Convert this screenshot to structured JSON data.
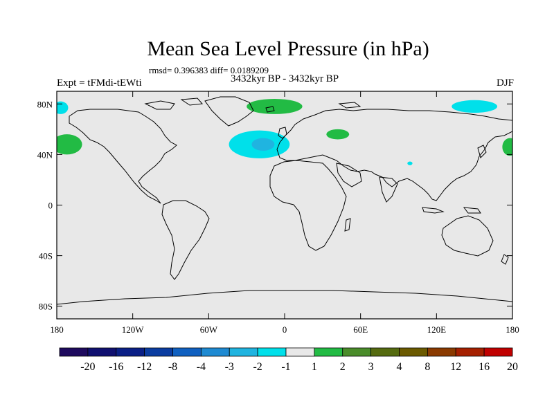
{
  "chart_data": {
    "type": "heatmap",
    "title": "Mean Sea Level Pressure (in hPa)",
    "subtitle": "rmsd= 0.396383 diff= 0.0189209",
    "period_label": "3432kyr BP - 3432kyr BP",
    "left_label": "Expt = tFMdi-tEWti",
    "right_label": "DJF",
    "x_ticks": [
      "180",
      "120W",
      "60W",
      "0",
      "60E",
      "120E",
      "180"
    ],
    "y_ticks": [
      "80N",
      "40N",
      "0",
      "40S",
      "80S"
    ],
    "xlim": [
      -180,
      180
    ],
    "ylim": [
      -90,
      90
    ],
    "colorbar": {
      "labels": [
        "-20",
        "-16",
        "-12",
        "-8",
        "-4",
        "-3",
        "-2",
        "-1",
        "1",
        "2",
        "3",
        "4",
        "8",
        "12",
        "16",
        "20"
      ],
      "colors": [
        "#1e0a5e",
        "#101070",
        "#0a1f86",
        "#0a3ca0",
        "#1060c0",
        "#1e8ad2",
        "#20b4e0",
        "#00e0ea",
        "#e8e8e8",
        "#22bb44",
        "#4a8c2a",
        "#556b10",
        "#6b5a00",
        "#8a3a00",
        "#a52000",
        "#c00000"
      ]
    },
    "anomaly_regions": [
      {
        "category": "-2 to -1",
        "lon": -20,
        "lat": 48,
        "dlon": 24,
        "dlat": 11
      },
      {
        "category": "-3 to -2",
        "lon": -17,
        "lat": 48,
        "dlon": 9,
        "dlat": 5
      },
      {
        "category": "-2 to -1",
        "lon": -177,
        "lat": 77,
        "dlon": 6,
        "dlat": 5
      },
      {
        "category": "-2 to -1",
        "lon": 150,
        "lat": 78,
        "dlon": 18,
        "dlat": 5
      },
      {
        "category": "-2 to -1",
        "lon": 99,
        "lat": 33,
        "dlon": 2,
        "dlat": 1.5
      },
      {
        "category": "1 to 2",
        "lon": -8,
        "lat": 78,
        "dlon": 22,
        "dlat": 6
      },
      {
        "category": "1 to 2",
        "lon": 42,
        "lat": 56,
        "dlon": 9,
        "dlat": 4
      },
      {
        "category": "1 to 2",
        "lon": -172,
        "lat": 48,
        "dlon": 12,
        "dlat": 8
      },
      {
        "category": "1 to 2",
        "lon": 178,
        "lat": 46,
        "dlon": 6,
        "dlat": 7
      }
    ]
  }
}
